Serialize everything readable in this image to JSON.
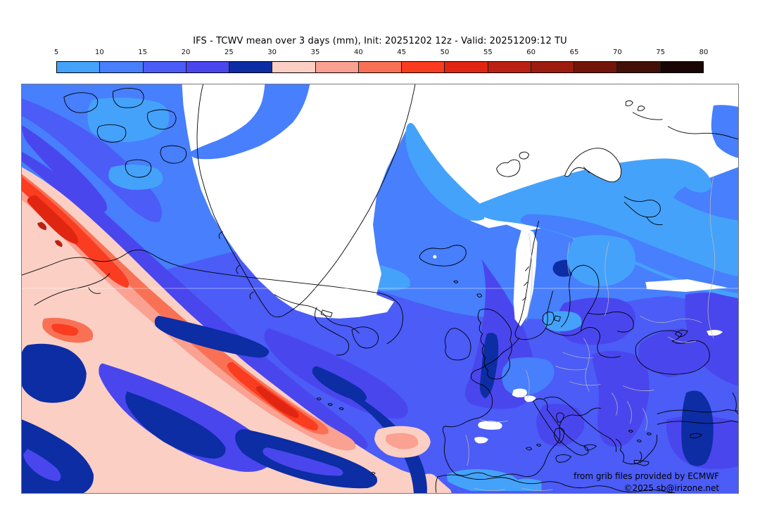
{
  "title": "IFS - TCWV mean over 3 days (mm), Init: 20251202 12z - Valid: 20251209:12 TU",
  "attribution": {
    "line1": "from grib files provided by ECMWF",
    "line2": "©2025 sb@irizone.net"
  },
  "colorbar": {
    "unit": "mm",
    "ticks": [
      5,
      10,
      15,
      20,
      25,
      30,
      35,
      40,
      45,
      50,
      55,
      60,
      65,
      70,
      75,
      80
    ],
    "segments": [
      {
        "from": 5,
        "to": 10,
        "color": "#45a2fb"
      },
      {
        "from": 10,
        "to": 15,
        "color": "#477ffd"
      },
      {
        "from": 15,
        "to": 20,
        "color": "#4b5cf7"
      },
      {
        "from": 20,
        "to": 25,
        "color": "#4a46ee"
      },
      {
        "from": 25,
        "to": 30,
        "color": "#0c2da4"
      },
      {
        "from": 30,
        "to": 35,
        "color": "#fbcfc4"
      },
      {
        "from": 35,
        "to": 40,
        "color": "#faa191"
      },
      {
        "from": 40,
        "to": 45,
        "color": "#f97155"
      },
      {
        "from": 45,
        "to": 50,
        "color": "#fa3c21"
      },
      {
        "from": 50,
        "to": 55,
        "color": "#e02511"
      },
      {
        "from": 55,
        "to": 60,
        "color": "#bb2112"
      },
      {
        "from": 60,
        "to": 65,
        "color": "#9c1d10"
      },
      {
        "from": 65,
        "to": 70,
        "color": "#73150a"
      },
      {
        "from": 70,
        "to": 75,
        "color": "#431007"
      },
      {
        "from": 75,
        "to": 80,
        "color": "#190503"
      }
    ]
  },
  "chart_data": {
    "type": "heatmap",
    "title": "IFS - TCWV mean over 3 days (mm), Init: 20251202 12z - Valid: 20251209:12 TU",
    "model": "IFS (ECMWF)",
    "variable": "Total column water vapour, mean over 3 days",
    "unit": "mm",
    "init_time": "20251202 12z",
    "valid_time": "20251209:12 TU",
    "region": "North Atlantic, Arctic and Europe",
    "legend_position": "top",
    "scale_levels": [
      5,
      10,
      15,
      20,
      25,
      30,
      35,
      40,
      45,
      50,
      55,
      60,
      65,
      70,
      75,
      80
    ],
    "scale_colors": [
      "#45a2fb",
      "#477ffd",
      "#4b5cf7",
      "#4a46ee",
      "#0c2da4",
      "#fbcfc4",
      "#faa191",
      "#f97155",
      "#fa3c21",
      "#e02511",
      "#bb2112",
      "#9c1d10",
      "#73150a",
      "#431007",
      "#190503"
    ],
    "observed_features": [
      {
        "area": "Subtropical SW Atlantic diagonal moisture band",
        "value_mm": "30-55"
      },
      {
        "area": "Greenland, Arctic Ocean, northern Scandinavia and NW Russia",
        "value_mm": "<5"
      },
      {
        "area": "Barents/Kara Sea corridor",
        "value_mm": "5-15"
      },
      {
        "area": "Canadian Arctic and Labrador Sea",
        "value_mm": "5-15"
      },
      {
        "area": "Mid-latitude North Atlantic and western Europe",
        "value_mm": "10-25"
      },
      {
        "area": "North Sea streak, Oslo area, eastern Mediterranean",
        "value_mm": "25-30"
      },
      {
        "area": "Dry spots: Iceland glacier, Alps, Pyrenees, Caucasus",
        "value_mm": "<5"
      }
    ]
  }
}
